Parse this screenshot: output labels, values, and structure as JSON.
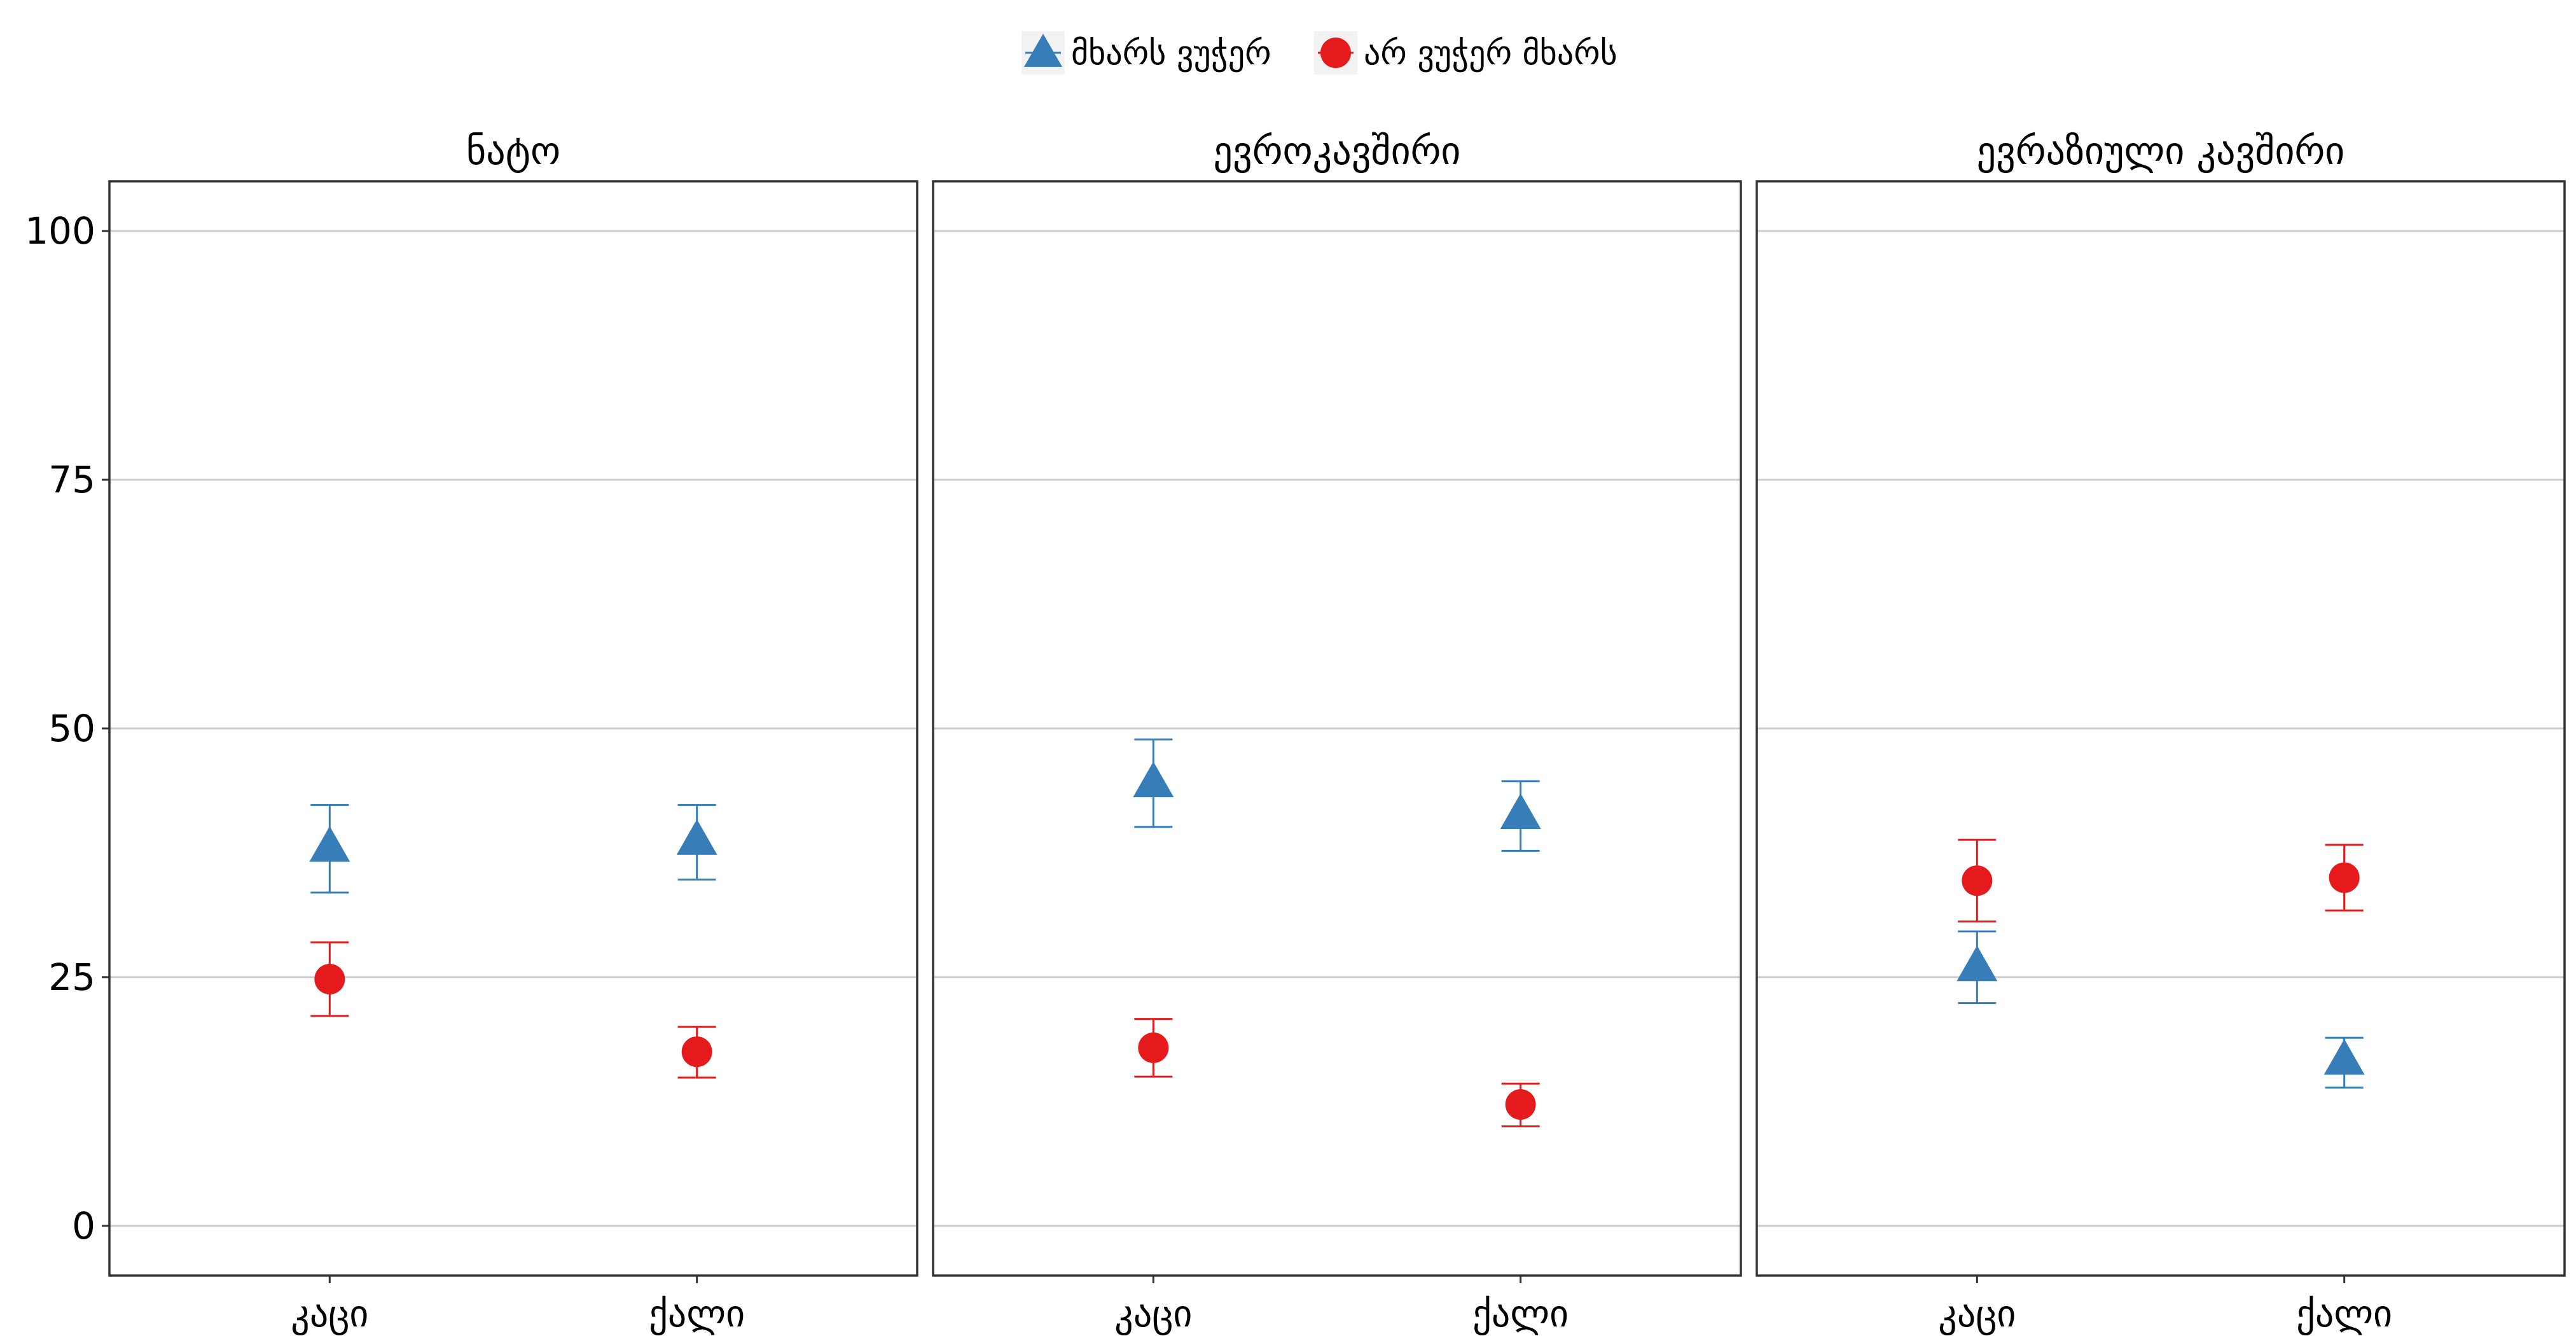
{
  "legend": {
    "position": "top",
    "items": [
      {
        "label": "მხარს ვუჭერ",
        "color": "#377EB8",
        "shape": "triangle"
      },
      {
        "label": "არ ვუჭერ მხარს",
        "color": "#E41A1C",
        "shape": "circle"
      }
    ]
  },
  "chart_data": {
    "type": "scatter",
    "error_bars": true,
    "grid": true,
    "ylim": [
      -5,
      105
    ],
    "yticks": [
      "0",
      "25",
      "50",
      "75",
      "100"
    ],
    "categories": [
      "კაცი",
      "ქალი"
    ],
    "panels": [
      {
        "title": "ნატო",
        "series": [
          {
            "name": "მხარს ვუჭერ",
            "values": [
              38,
              38.7
            ],
            "lower": [
              33.5,
              34.8
            ],
            "upper": [
              42.3,
              42.3
            ]
          },
          {
            "name": "არ ვუჭერ მხარს",
            "values": [
              24.8,
              17.5
            ],
            "lower": [
              21.1,
              14.9
            ],
            "upper": [
              28.5,
              20.0
            ]
          }
        ]
      },
      {
        "title": "ევროკავშირი",
        "series": [
          {
            "name": "მხარს ვუჭერ",
            "values": [
              44.5,
              41.3
            ],
            "lower": [
              40.1,
              37.7
            ],
            "upper": [
              48.9,
              44.7
            ]
          },
          {
            "name": "არ ვუჭერ მხარს",
            "values": [
              17.9,
              12.2
            ],
            "lower": [
              15.0,
              10.0
            ],
            "upper": [
              20.8,
              14.3
            ]
          }
        ]
      },
      {
        "title": "ევრაზიული კავშირი",
        "series": [
          {
            "name": "მხარს ვუჭერ",
            "values": [
              26.0,
              16.6
            ],
            "lower": [
              22.4,
              13.9
            ],
            "upper": [
              29.6,
              18.9
            ]
          },
          {
            "name": "არ ვუჭერ მხარს",
            "values": [
              34.7,
              35.0
            ],
            "lower": [
              30.6,
              31.7
            ],
            "upper": [
              38.8,
              38.3
            ]
          }
        ]
      }
    ]
  }
}
